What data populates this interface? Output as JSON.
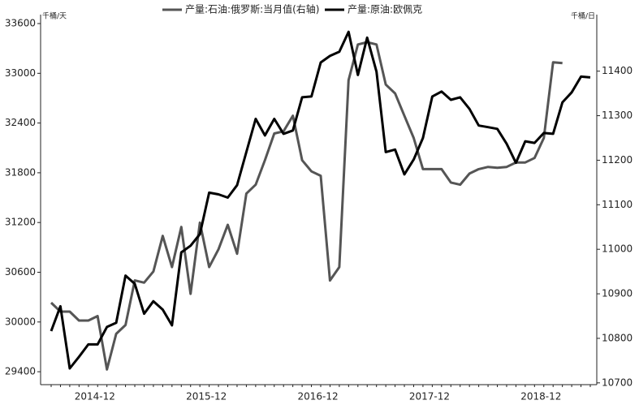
{
  "chart_data": {
    "type": "line",
    "y_unit": "千桶/天",
    "y2_unit": "千桶/日",
    "categories": [
      null,
      null,
      null,
      null,
      "2014-12",
      null,
      null,
      null,
      null,
      null,
      null,
      null,
      null,
      null,
      null,
      null,
      "2015-12",
      null,
      null,
      null,
      null,
      null,
      null,
      null,
      null,
      null,
      null,
      null,
      "2016-12",
      null,
      null,
      null,
      null,
      null,
      null,
      null,
      null,
      null,
      null,
      null,
      "2017-12",
      null,
      null,
      null,
      null,
      null,
      null,
      null,
      null,
      null,
      null,
      null,
      "2018-12",
      null,
      null,
      null,
      null,
      null,
      null
    ],
    "ylim": [
      29244,
      33708
    ],
    "yticks": [
      29400,
      30000,
      30600,
      31200,
      31800,
      32400,
      33000,
      33600
    ],
    "y2lim": [
      10696,
      11527
    ],
    "y2ticks": [
      10700,
      10800,
      10900,
      11000,
      11100,
      11200,
      11300,
      11400
    ],
    "series": [
      {
        "name": "产量:石油:俄罗斯:当月值(右轴)",
        "color": "#555555",
        "axis": "y2",
        "values": [
          10880,
          10860,
          10860,
          10840,
          10840,
          10850,
          10730,
          10810,
          10830,
          10930,
          10925,
          10950,
          11030,
          10960,
          11050,
          10900,
          11060,
          10960,
          11000,
          11055,
          10990,
          11125,
          11145,
          11200,
          11260,
          11265,
          11300,
          11200,
          11175,
          11165,
          10930,
          10960,
          11380,
          11460,
          11465,
          11460,
          11370,
          11350,
          11300,
          11250,
          11180,
          11180,
          11180,
          11150,
          11145,
          11170,
          11180,
          11185,
          11183,
          11185,
          11195,
          11195,
          11205,
          11250,
          11420,
          11418,
          null,
          null,
          null
        ]
      },
      {
        "name": "产量:原油:欧佩克",
        "color": "#000000",
        "values": [
          29890,
          30190,
          29440,
          29580,
          29730,
          29730,
          29940,
          29990,
          30560,
          30460,
          30100,
          30250,
          30150,
          29960,
          30840,
          30920,
          31060,
          31560,
          31540,
          31500,
          31650,
          32050,
          32450,
          32250,
          32450,
          32270,
          32310,
          32710,
          32720,
          33130,
          33210,
          33260,
          33500,
          32980,
          33430,
          33020,
          32050,
          32080,
          31780,
          31960,
          32220,
          32720,
          32780,
          32680,
          32710,
          32570,
          32370,
          32350,
          32330,
          32150,
          31920,
          32180,
          32160,
          32280,
          32270,
          32650,
          32770,
          32960,
          32950
        ]
      }
    ]
  }
}
